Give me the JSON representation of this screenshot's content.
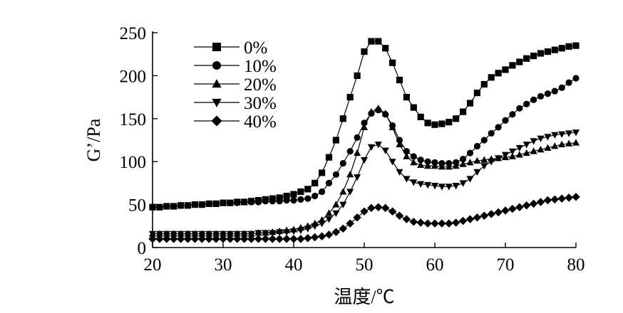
{
  "chart_data": {
    "type": "line",
    "xlabel": "温度/℃",
    "ylabel": "G’/Pa",
    "xlim": [
      20,
      80
    ],
    "ylim": [
      0,
      250
    ],
    "xticks": [
      20,
      30,
      40,
      50,
      60,
      70,
      80
    ],
    "yticks": [
      0,
      50,
      100,
      150,
      200,
      250
    ],
    "legend_position": "top-left",
    "grid": false,
    "x": [
      20,
      21,
      22,
      23,
      24,
      25,
      26,
      27,
      28,
      29,
      30,
      31,
      32,
      33,
      34,
      35,
      36,
      37,
      38,
      39,
      40,
      41,
      42,
      43,
      44,
      45,
      46,
      47,
      48,
      49,
      50,
      51,
      52,
      53,
      54,
      55,
      56,
      57,
      58,
      59,
      60,
      61,
      62,
      63,
      64,
      65,
      66,
      67,
      68,
      69,
      70,
      71,
      72,
      73,
      74,
      75,
      76,
      77,
      78,
      79,
      80
    ],
    "series": [
      {
        "name": "0%",
        "marker": "square",
        "values": [
          47,
          47,
          48,
          48,
          49,
          49,
          50,
          50,
          51,
          51,
          52,
          52,
          53,
          53,
          54,
          55,
          56,
          57,
          58,
          60,
          62,
          65,
          68,
          75,
          87,
          105,
          125,
          150,
          175,
          200,
          228,
          240,
          240,
          232,
          215,
          195,
          175,
          163,
          152,
          145,
          143,
          144,
          146,
          150,
          158,
          168,
          180,
          190,
          198,
          203,
          207,
          212,
          216,
          220,
          223,
          226,
          228,
          230,
          232,
          234,
          235
        ]
      },
      {
        "name": "10%",
        "marker": "circle",
        "values": [
          47,
          47,
          48,
          48,
          49,
          49,
          50,
          50,
          51,
          51,
          52,
          52,
          52,
          53,
          53,
          53,
          54,
          54,
          54,
          55,
          55,
          56,
          57,
          60,
          65,
          75,
          85,
          98,
          112,
          128,
          145,
          156,
          160,
          155,
          142,
          125,
          112,
          106,
          102,
          100,
          99,
          98,
          98,
          99,
          103,
          110,
          118,
          125,
          133,
          140,
          148,
          155,
          162,
          167,
          172,
          176,
          179,
          182,
          186,
          192,
          197
        ]
      },
      {
        "name": "20%",
        "marker": "triangle-up",
        "values": [
          16,
          16,
          16,
          16,
          16,
          16,
          16,
          16,
          16,
          16,
          16,
          16,
          16,
          16,
          16,
          17,
          17,
          18,
          19,
          20,
          21,
          23,
          25,
          28,
          32,
          40,
          50,
          65,
          85,
          110,
          140,
          158,
          162,
          156,
          140,
          120,
          106,
          99,
          96,
          95,
          95,
          94,
          94,
          95,
          97,
          99,
          101,
          102,
          103,
          104,
          105,
          106,
          108,
          110,
          112,
          114,
          116,
          118,
          120,
          121,
          122
        ]
      },
      {
        "name": "30%",
        "marker": "triangle-down",
        "values": [
          16,
          16,
          16,
          16,
          16,
          16,
          16,
          16,
          16,
          16,
          16,
          16,
          16,
          16,
          16,
          17,
          17,
          17,
          18,
          18,
          19,
          20,
          22,
          25,
          28,
          33,
          40,
          50,
          65,
          82,
          102,
          117,
          120,
          113,
          100,
          88,
          80,
          76,
          74,
          73,
          72,
          71,
          71,
          72,
          75,
          80,
          88,
          95,
          100,
          104,
          108,
          112,
          116,
          120,
          124,
          127,
          129,
          131,
          132,
          133,
          134
        ]
      },
      {
        "name": "40%",
        "marker": "diamond",
        "values": [
          10,
          10,
          10,
          10,
          10,
          10,
          10,
          10,
          10,
          10,
          10,
          10,
          10,
          10,
          10,
          10,
          10,
          10,
          10,
          10,
          10,
          10,
          11,
          12,
          13,
          15,
          18,
          22,
          28,
          35,
          42,
          46,
          47,
          46,
          42,
          37,
          33,
          30,
          29,
          28,
          28,
          28,
          28,
          29,
          31,
          33,
          35,
          37,
          39,
          41,
          43,
          45,
          47,
          49,
          51,
          53,
          55,
          56,
          57,
          58,
          59
        ]
      }
    ]
  }
}
